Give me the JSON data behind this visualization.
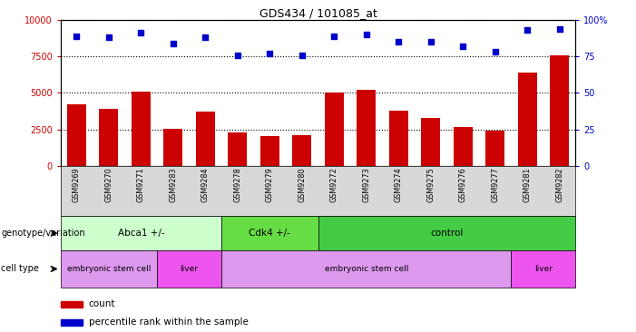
{
  "title": "GDS434 / 101085_at",
  "samples": [
    "GSM9269",
    "GSM9270",
    "GSM9271",
    "GSM9283",
    "GSM9284",
    "GSM9278",
    "GSM9279",
    "GSM9280",
    "GSM9272",
    "GSM9273",
    "GSM9274",
    "GSM9275",
    "GSM9276",
    "GSM9277",
    "GSM9281",
    "GSM9282"
  ],
  "counts_fixed": [
    4200,
    3900,
    5100,
    2550,
    3700,
    2300,
    2050,
    2100,
    5000,
    5200,
    3800,
    3300,
    2700,
    2400,
    6400,
    7600
  ],
  "percentile": [
    89,
    88,
    91,
    84,
    88,
    76,
    77,
    76,
    89,
    90,
    85,
    85,
    82,
    78,
    93,
    94
  ],
  "ylim_left": [
    0,
    10000
  ],
  "ylim_right": [
    0,
    100
  ],
  "yticks_left": [
    0,
    2500,
    5000,
    7500,
    10000
  ],
  "yticks_right": [
    0,
    25,
    50,
    75,
    100
  ],
  "bar_color": "#cc0000",
  "dot_color": "#0000cc",
  "background_color": "#ffffff",
  "genotype_groups": [
    {
      "label": "Abca1 +/-",
      "start": 0,
      "end": 5,
      "color": "#ccffcc"
    },
    {
      "label": "Cdk4 +/-",
      "start": 5,
      "end": 8,
      "color": "#66dd44"
    },
    {
      "label": "control",
      "start": 8,
      "end": 16,
      "color": "#44cc44"
    }
  ],
  "celltype_groups": [
    {
      "label": "embryonic stem cell",
      "start": 0,
      "end": 3,
      "color": "#dd99ee"
    },
    {
      "label": "liver",
      "start": 3,
      "end": 5,
      "color": "#ee55ee"
    },
    {
      "label": "embryonic stem cell",
      "start": 5,
      "end": 14,
      "color": "#dd99ee"
    },
    {
      "label": "liver",
      "start": 14,
      "end": 16,
      "color": "#ee55ee"
    }
  ],
  "label_genotype": "genotype/variation",
  "label_celltype": "cell type",
  "legend_count": "count",
  "legend_percentile": "percentile rank within the sample"
}
